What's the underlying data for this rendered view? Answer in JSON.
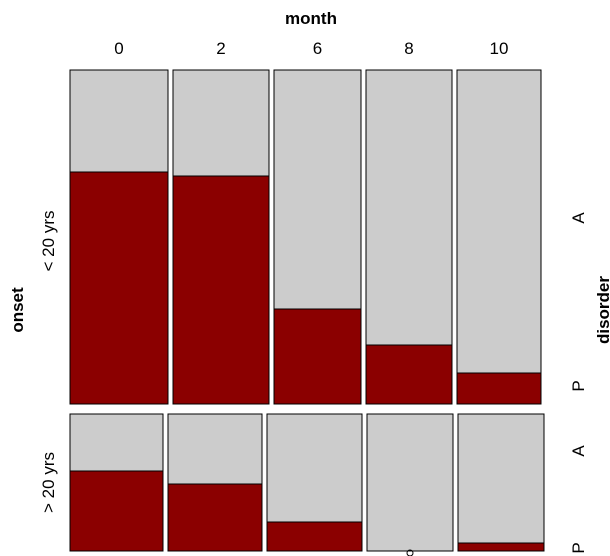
{
  "chart_data": {
    "type": "mosaic",
    "top_variable": {
      "label": "month",
      "levels": [
        "0",
        "2",
        "6",
        "8",
        "10"
      ]
    },
    "left_variable": {
      "label": "onset",
      "levels": [
        "< 20 yrs",
        "> 20 yrs"
      ]
    },
    "right_variable": {
      "label": "disorder",
      "levels": [
        "A",
        "P"
      ]
    },
    "colors": {
      "A": "#cccccc",
      "P": "#8b0000",
      "stroke": "#000000"
    },
    "row_heights": [
      334,
      137
    ],
    "column_widths": [
      [
        98,
        96,
        87,
        86,
        84
      ],
      [
        93,
        94,
        95,
        86,
        86
      ]
    ],
    "proportion_P": [
      [
        0.695,
        0.683,
        0.285,
        0.178,
        0.094
      ],
      [
        0.586,
        0.489,
        0.211,
        0.0,
        0.058
      ]
    ]
  }
}
